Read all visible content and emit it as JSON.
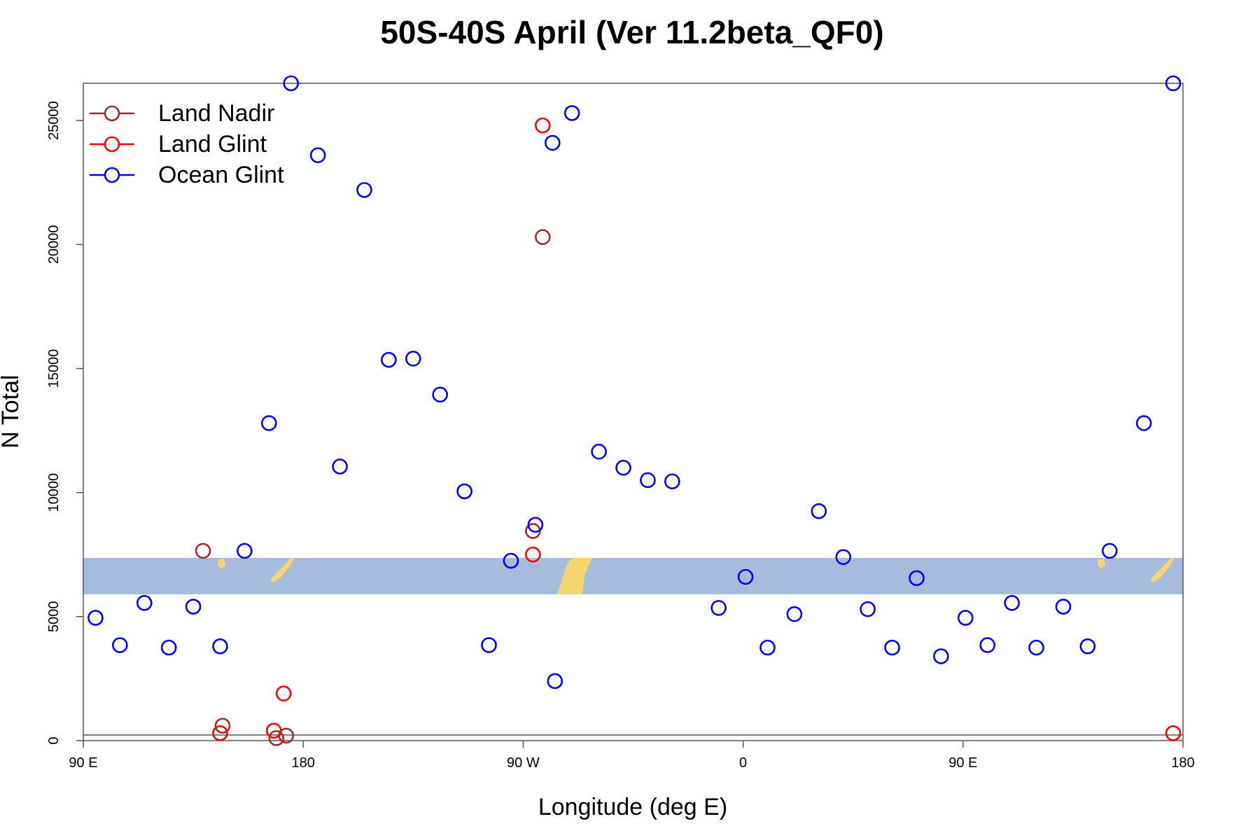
{
  "chart_data": {
    "type": "scatter",
    "title": "50S-40S April (Ver 11.2beta_QF0)",
    "xlabel": "Longitude (deg E)",
    "ylabel": "N Total",
    "xlim": [
      90,
      540
    ],
    "ylim": [
      0,
      26500
    ],
    "x_ticks": [
      {
        "value": 90,
        "label": "90 E"
      },
      {
        "value": 180,
        "label": "180"
      },
      {
        "value": 270,
        "label": "90 W"
      },
      {
        "value": 360,
        "label": "0"
      },
      {
        "value": 450,
        "label": "90 E"
      },
      {
        "value": 540,
        "label": "180"
      }
    ],
    "y_ticks": [
      {
        "value": 0,
        "label": "0"
      },
      {
        "value": 5000,
        "label": "5000"
      },
      {
        "value": 10000,
        "label": "10000"
      },
      {
        "value": 15000,
        "label": "15000"
      },
      {
        "value": 20000,
        "label": "20000"
      },
      {
        "value": 25000,
        "label": "25000"
      }
    ],
    "legend_position": "top-left",
    "series": [
      {
        "name": "Land Nadir",
        "color": "#a52a2a",
        "points": [
          {
            "x": 147,
            "y": 600
          },
          {
            "x": 169,
            "y": 100
          },
          {
            "x": 173,
            "y": 200
          },
          {
            "x": 274,
            "y": 8450
          },
          {
            "x": 278,
            "y": 20300
          },
          {
            "x": 139,
            "y": 7650
          },
          {
            "x": 139,
            "y": 7650
          },
          {
            "x": 139,
            "y": 7650
          },
          {
            "x": 139,
            "y": 7650
          },
          {
            "x": 139,
            "y": 7650
          },
          {
            "x": 139,
            "y": 7650
          },
          {
            "x": 139,
            "y": 7650
          },
          {
            "x": 139,
            "y": 7650
          },
          {
            "x": 139,
            "y": 7650
          },
          {
            "x": 139,
            "y": 7650
          },
          {
            "x": 139,
            "y": 7650
          },
          {
            "x": 139,
            "y": 7650
          },
          {
            "x": 139,
            "y": 7650
          },
          {
            "x": 139,
            "y": 7650
          },
          {
            "x": 139,
            "y": 7650
          },
          {
            "x": 139,
            "y": 7650
          },
          {
            "x": 139,
            "y": 7650
          },
          {
            "x": 139,
            "y": 7650
          },
          {
            "x": 139,
            "y": 7650
          },
          {
            "x": 139,
            "y": 7650
          }
        ]
      },
      {
        "name": "Land Glint",
        "color": "#ff0000",
        "points": [
          {
            "x": 146,
            "y": 300
          },
          {
            "x": 168,
            "y": 400
          },
          {
            "x": 172,
            "y": 1900
          },
          {
            "x": 274,
            "y": 7500
          },
          {
            "x": 278,
            "y": 24800
          },
          {
            "x": 536,
            "y": 300
          },
          {
            "x": 536,
            "y": 300
          },
          {
            "x": 536,
            "y": 300
          }
        ]
      },
      {
        "name": "Ocean Glint",
        "color": "#0000ff",
        "points": [
          {
            "x": 95,
            "y": 4950
          },
          {
            "x": 105,
            "y": 3850
          },
          {
            "x": 115,
            "y": 5550
          },
          {
            "x": 125,
            "y": 3750
          },
          {
            "x": 135,
            "y": 5400
          },
          {
            "x": 146,
            "y": 3800
          },
          {
            "x": 156,
            "y": 7650
          },
          {
            "x": 166,
            "y": 12800
          },
          {
            "x": 175,
            "y": 26500
          },
          {
            "x": 186,
            "y": 23600
          },
          {
            "x": 195,
            "y": 11050
          },
          {
            "x": 205,
            "y": 22200
          },
          {
            "x": 215,
            "y": 15350
          },
          {
            "x": 225,
            "y": 15400
          },
          {
            "x": 236,
            "y": 13950
          },
          {
            "x": 246,
            "y": 10050
          },
          {
            "x": 256,
            "y": 3850
          },
          {
            "x": 265,
            "y": 7250
          },
          {
            "x": 275,
            "y": 8700
          },
          {
            "x": 283,
            "y": 2400
          },
          {
            "x": 282,
            "y": 24100
          },
          {
            "x": 290,
            "y": 25300
          },
          {
            "x": 301,
            "y": 11650
          },
          {
            "x": 311,
            "y": 11000
          },
          {
            "x": 321,
            "y": 10500
          },
          {
            "x": 331,
            "y": 10450
          },
          {
            "x": 350,
            "y": 5350
          },
          {
            "x": 361,
            "y": 6600
          },
          {
            "x": 370,
            "y": 3750
          },
          {
            "x": 381,
            "y": 5100
          },
          {
            "x": 391,
            "y": 9250
          },
          {
            "x": 401,
            "y": 7400
          },
          {
            "x": 411,
            "y": 5300
          },
          {
            "x": 421,
            "y": 3750
          },
          {
            "x": 431,
            "y": 6550
          },
          {
            "x": 441,
            "y": 3400
          },
          {
            "x": 451,
            "y": 4950
          },
          {
            "x": 460,
            "y": 3850
          },
          {
            "x": 470,
            "y": 5550
          },
          {
            "x": 480,
            "y": 3750
          },
          {
            "x": 491,
            "y": 5400
          },
          {
            "x": 501,
            "y": 3800
          },
          {
            "x": 510,
            "y": 7650
          },
          {
            "x": 524,
            "y": 12800
          },
          {
            "x": 536,
            "y": 26500
          }
        ]
      }
    ]
  }
}
